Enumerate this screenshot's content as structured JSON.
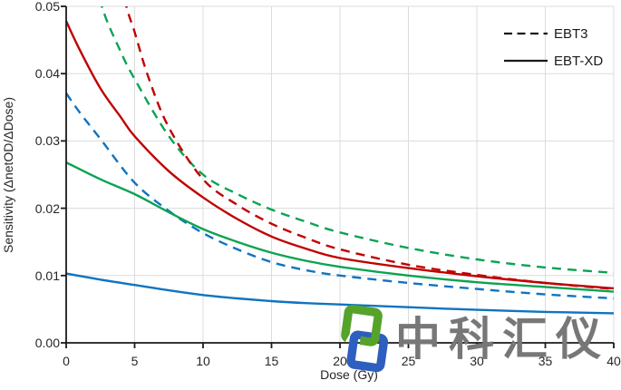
{
  "chart_data": {
    "type": "line",
    "title": "",
    "xlabel": "Dose (Gy)",
    "ylabel": "Sensitivity (ΔnetOD/ΔDose)",
    "xlim": [
      0,
      40
    ],
    "ylim": [
      0,
      0.05
    ],
    "grid": true,
    "grid_color": "#DCDCDC",
    "axis_color": "#1a1a1a",
    "x_tick_labels": [
      "0",
      "5",
      "10",
      "15",
      "20",
      "25",
      "30",
      "35",
      "40"
    ],
    "y_tick_labels": [
      "0.00",
      "0.01",
      "0.02",
      "0.03",
      "0.04",
      "0.05"
    ],
    "legend": {
      "position": "top-right",
      "entries": [
        {
          "label": "EBT3",
          "style": "dashed",
          "color": "#1a1a1a"
        },
        {
          "label": "EBT-XD",
          "style": "solid",
          "color": "#1a1a1a"
        }
      ]
    },
    "series": [
      {
        "id": "ebtxd-blue",
        "film": "EBT-XD",
        "channel": "blue",
        "style": "solid",
        "color": "#0F74C0",
        "points": [
          [
            0,
            0.0103
          ],
          [
            2.5,
            0.0094
          ],
          [
            5,
            0.0086
          ],
          [
            7.5,
            0.0078
          ],
          [
            10,
            0.0071
          ],
          [
            12.5,
            0.0066
          ],
          [
            15,
            0.0062
          ],
          [
            17.5,
            0.0059
          ],
          [
            20,
            0.0057
          ],
          [
            25,
            0.0053
          ],
          [
            30,
            0.0049
          ],
          [
            35,
            0.0046
          ],
          [
            40,
            0.0044
          ]
        ]
      },
      {
        "id": "ebt3-blue",
        "film": "EBT3",
        "channel": "blue",
        "style": "dashed",
        "color": "#0F74C0",
        "points": [
          [
            0,
            0.0371
          ],
          [
            1,
            0.0342
          ],
          [
            2.5,
            0.0303
          ],
          [
            5,
            0.0238
          ],
          [
            7.5,
            0.0196
          ],
          [
            10,
            0.0163
          ],
          [
            12.5,
            0.0139
          ],
          [
            15,
            0.012
          ],
          [
            17.5,
            0.0108
          ],
          [
            20,
            0.01
          ],
          [
            25,
            0.0089
          ],
          [
            30,
            0.008
          ],
          [
            35,
            0.0072
          ],
          [
            40,
            0.0066
          ]
        ]
      },
      {
        "id": "ebtxd-green",
        "film": "EBT-XD",
        "channel": "green",
        "style": "solid",
        "color": "#0BA352",
        "points": [
          [
            0,
            0.0268
          ],
          [
            2.5,
            0.0243
          ],
          [
            5,
            0.0221
          ],
          [
            7.5,
            0.0194
          ],
          [
            10,
            0.0169
          ],
          [
            12.5,
            0.015
          ],
          [
            15,
            0.0134
          ],
          [
            17.5,
            0.0122
          ],
          [
            20,
            0.0113
          ],
          [
            25,
            0.01
          ],
          [
            30,
            0.009
          ],
          [
            35,
            0.0083
          ],
          [
            40,
            0.0076
          ]
        ]
      },
      {
        "id": "ebt3-green",
        "film": "EBT3",
        "channel": "green",
        "style": "dashed",
        "color": "#0BA352",
        "points": [
          [
            1.4,
            0.06
          ],
          [
            2.6,
            0.05
          ],
          [
            4,
            0.0432
          ],
          [
            5,
            0.0392
          ],
          [
            7.5,
            0.0307
          ],
          [
            10,
            0.025
          ],
          [
            12.5,
            0.0221
          ],
          [
            15,
            0.0198
          ],
          [
            17.5,
            0.018
          ],
          [
            20,
            0.0164
          ],
          [
            25,
            0.0141
          ],
          [
            30,
            0.0124
          ],
          [
            35,
            0.0112
          ],
          [
            40,
            0.0104
          ]
        ]
      },
      {
        "id": "ebt3-red",
        "film": "EBT3",
        "channel": "red",
        "style": "dashed",
        "color": "#C00000",
        "points": [
          [
            3.2,
            0.06
          ],
          [
            4.4,
            0.05
          ],
          [
            5,
            0.0462
          ],
          [
            6,
            0.0395
          ],
          [
            7.5,
            0.032
          ],
          [
            10,
            0.0243
          ],
          [
            12.5,
            0.0205
          ],
          [
            15,
            0.0177
          ],
          [
            17.5,
            0.0156
          ],
          [
            20,
            0.0139
          ],
          [
            25,
            0.0116
          ],
          [
            30,
            0.0101
          ],
          [
            35,
            0.0089
          ],
          [
            40,
            0.008
          ]
        ]
      },
      {
        "id": "ebtxd-red",
        "film": "EBT-XD",
        "channel": "red",
        "style": "solid",
        "color": "#C00000",
        "points": [
          [
            0,
            0.0478
          ],
          [
            1,
            0.0435
          ],
          [
            2.5,
            0.0378
          ],
          [
            4,
            0.0335
          ],
          [
            5,
            0.0307
          ],
          [
            7.5,
            0.0255
          ],
          [
            10,
            0.0216
          ],
          [
            12.5,
            0.0184
          ],
          [
            15,
            0.0158
          ],
          [
            17.5,
            0.014
          ],
          [
            20,
            0.0126
          ],
          [
            25,
            0.0111
          ],
          [
            30,
            0.0099
          ],
          [
            35,
            0.0089
          ],
          [
            40,
            0.0081
          ]
        ]
      }
    ]
  },
  "watermark": {
    "text": "中科汇仪",
    "text_color": "#777777",
    "logo_green": "#55A32A",
    "logo_blue": "#2E5EC0"
  }
}
